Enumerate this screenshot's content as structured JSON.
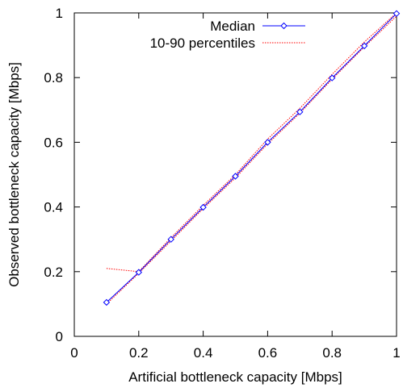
{
  "chart_data": {
    "type": "line",
    "xlabel": "Artificial bottleneck capacity [Mbps]",
    "ylabel": "Observed bottleneck capacity [Mbps]",
    "xlim": [
      0,
      1
    ],
    "ylim": [
      0,
      1
    ],
    "xticks": [
      "0",
      "0.2",
      "0.4",
      "0.6",
      "0.8",
      "1"
    ],
    "yticks": [
      "0",
      "0.2",
      "0.4",
      "0.6",
      "0.8",
      "1"
    ],
    "grid": false,
    "legend_position": "top-right",
    "series": [
      {
        "name": "Median",
        "color": "#0000ff",
        "marker": "diamond",
        "style": "solid",
        "x": [
          0.1,
          0.2,
          0.3,
          0.4,
          0.5,
          0.6,
          0.7,
          0.8,
          0.9,
          1.0
        ],
        "y": [
          0.105,
          0.198,
          0.3,
          0.399,
          0.495,
          0.6,
          0.694,
          0.799,
          0.898,
          0.998
        ]
      },
      {
        "name": "10-90 percentiles",
        "color": "#ff0000",
        "marker": "none",
        "style": "dotted",
        "segments": [
          {
            "x": [
              0.1,
              0.2,
              0.3,
              0.4,
              0.5,
              0.6,
              0.7,
              0.8,
              0.9,
              1.0
            ],
            "y": [
              0.21,
              0.2,
              0.305,
              0.405,
              0.5,
              0.61,
              0.705,
              0.81,
              0.91,
              1.0
            ]
          },
          {
            "x": [
              0.1,
              0.2,
              0.3,
              0.4,
              0.5,
              0.6,
              0.7,
              0.8,
              0.9,
              1.0
            ],
            "y": [
              0.1,
              0.195,
              0.295,
              0.395,
              0.49,
              0.595,
              0.69,
              0.795,
              0.895,
              0.99
            ]
          }
        ]
      }
    ]
  }
}
